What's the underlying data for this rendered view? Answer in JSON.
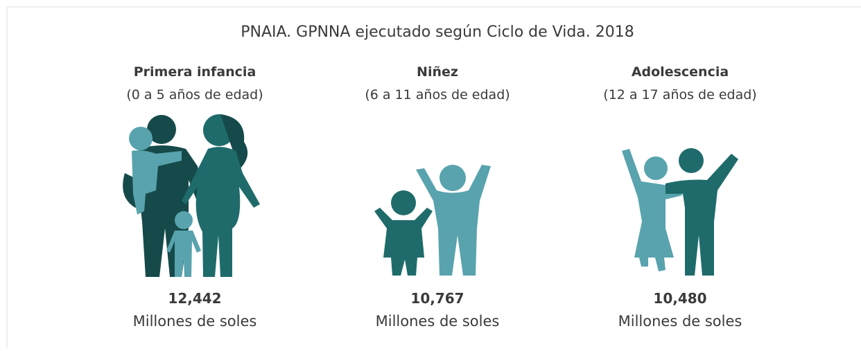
{
  "title": "PNAIA. GPNNA ejecutado según Ciclo de Vida. 2018",
  "groups": [
    {
      "label": "Primera infancia",
      "age": "(0 a 5 años de edad)",
      "value": "12,442",
      "unit": "Millones de soles"
    },
    {
      "label": "Niñez",
      "age": "(6 a 11 años de edad)",
      "value": "10,767",
      "unit": "Millones de soles"
    },
    {
      "label": "Adolescencia",
      "age": "(12 a 17 años de edad)",
      "value": "10,480",
      "unit": "Millones de soles"
    }
  ]
}
